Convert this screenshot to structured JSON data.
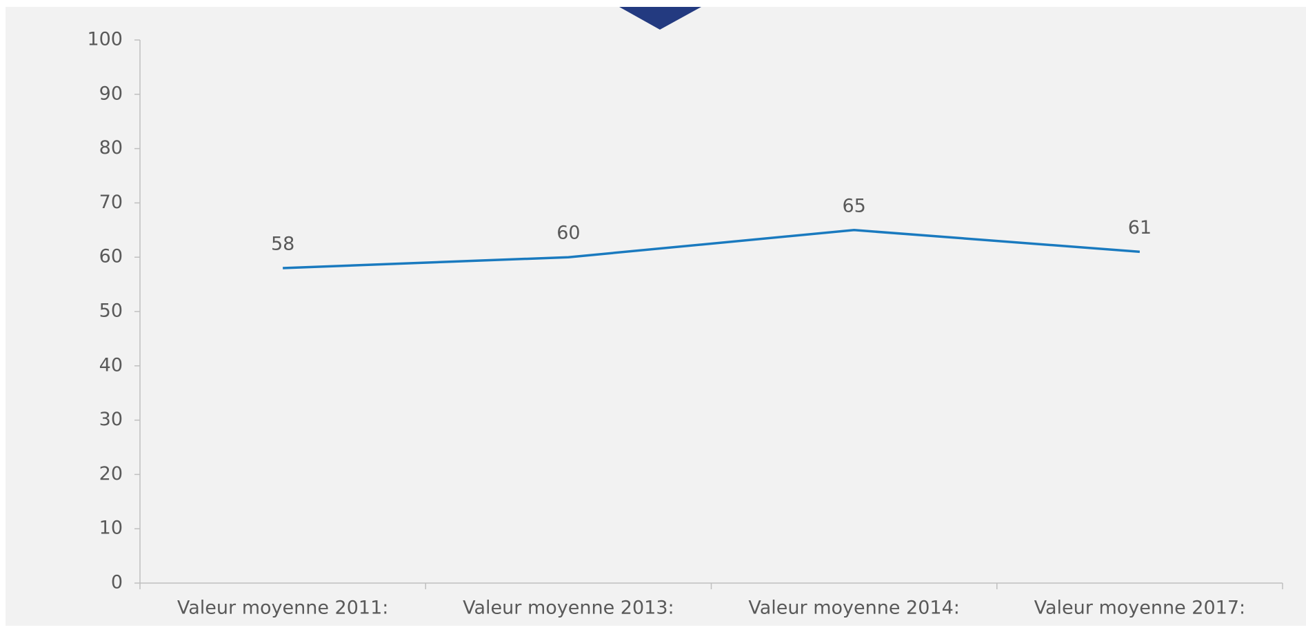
{
  "chart_data": {
    "type": "line",
    "categories": [
      "Valeur moyenne 2011:",
      "Valeur moyenne 2013:",
      "Valeur moyenne 2014:",
      "Valeur moyenne 2017:"
    ],
    "series": [
      {
        "name": "Valeur moyenne",
        "color": "#1a7abf",
        "values": [
          58,
          60,
          65,
          61
        ]
      }
    ],
    "ylim": [
      0,
      100
    ],
    "yticks": [
      0,
      10,
      20,
      30,
      40,
      50,
      60,
      70,
      80,
      90,
      100
    ],
    "grid": false
  }
}
